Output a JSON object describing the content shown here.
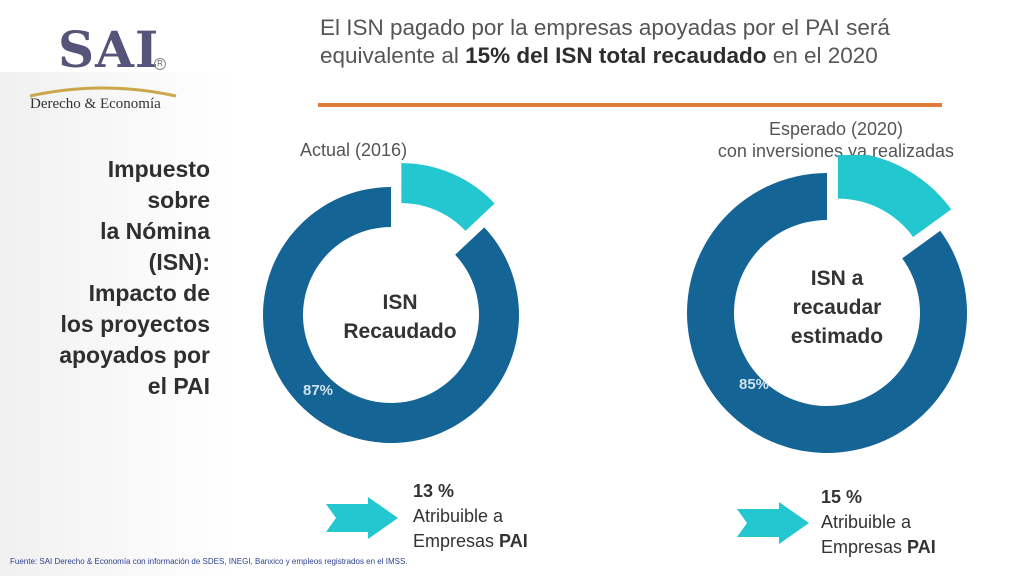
{
  "logo": {
    "brand": "SAI",
    "registered": "R",
    "subtitle": "Derecho & Economía"
  },
  "headline": {
    "part1": "El ISN pagado por la empresas apoyadas por el PAI será equivalente al ",
    "bold": "15% del ISN total recaudado",
    "part2": " en el 2020"
  },
  "side_title": {
    "lines": [
      "Impuesto",
      "sobre",
      "la Nómina",
      "(ISN):",
      "Impacto de",
      "los proyectos",
      "apoyados por",
      "el PAI"
    ]
  },
  "left_chart": {
    "title": "Actual (2016)",
    "center_lines": [
      "ISN",
      "Recaudado"
    ],
    "main_pct_label": "87%",
    "attrib_pct": "13 %",
    "attrib_line1": "Atribuible a",
    "attrib_line2_prefix": "Empresas ",
    "attrib_line2_bold": "PAI"
  },
  "right_chart": {
    "title_line1": "Esperado (2020)",
    "title_line2": "con inversiones ya realizadas",
    "center_lines": [
      "ISN a",
      "recaudar",
      "estimado"
    ],
    "main_pct_label": "85%",
    "attrib_pct": "15 %",
    "attrib_line1": "Atribuible a",
    "attrib_line2_prefix": "Empresas ",
    "attrib_line2_bold": "PAI"
  },
  "chart_data": [
    {
      "type": "pie",
      "title": "Actual (2016)",
      "categories": [
        "ISN Recaudado (resto)",
        "Atribuible a Empresas PAI"
      ],
      "values": [
        87,
        13
      ],
      "colors": [
        "#156496",
        "#22c7cf"
      ]
    },
    {
      "type": "pie",
      "title": "Esperado (2020) con inversiones ya realizadas",
      "categories": [
        "ISN a recaudar estimado (resto)",
        "Atribuible a Empresas PAI"
      ],
      "values": [
        85,
        15
      ],
      "colors": [
        "#156496",
        "#22c7cf"
      ]
    }
  ],
  "colors": {
    "accent_orange": "#e07b39",
    "donut_dark": "#156496",
    "donut_light": "#22c7cf"
  },
  "footer": {
    "text": "Fuente: SAI Derecho & Economía con información de SDES, INEGI, Banxico y empleos registrados en el IMSS."
  }
}
